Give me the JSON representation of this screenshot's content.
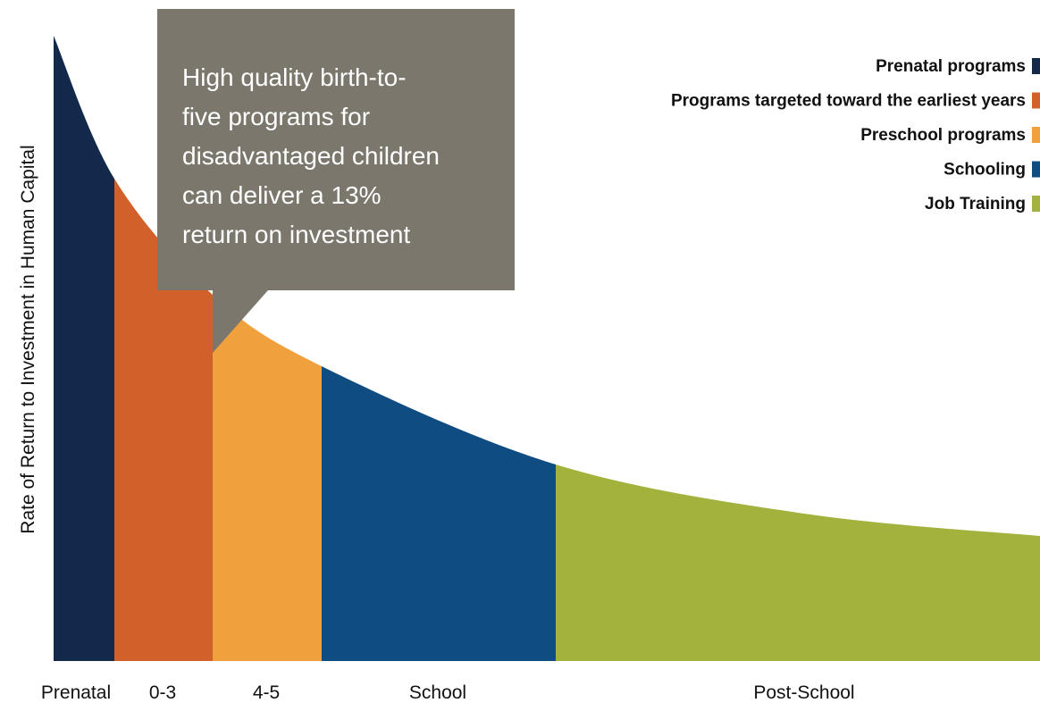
{
  "y_axis_label": "Rate of Return to Investment in Human Capital",
  "callout": {
    "lines": [
      "High quality birth-to-",
      "five programs for",
      "disadvantaged children",
      "can deliver a 13%",
      "return on investment"
    ]
  },
  "legend": [
    {
      "label": "Prenatal programs",
      "color": "#13294b"
    },
    {
      "label": "Programs targeted toward the earliest years",
      "color": "#d2602a"
    },
    {
      "label": "Preschool programs",
      "color": "#f0a03c"
    },
    {
      "label": "Schooling",
      "color": "#0f4c81"
    },
    {
      "label": "Job Training",
      "color": "#a3b23c"
    }
  ],
  "stages": [
    "Prenatal",
    "0-3",
    "4-5",
    "School",
    "Post-School"
  ]
}
